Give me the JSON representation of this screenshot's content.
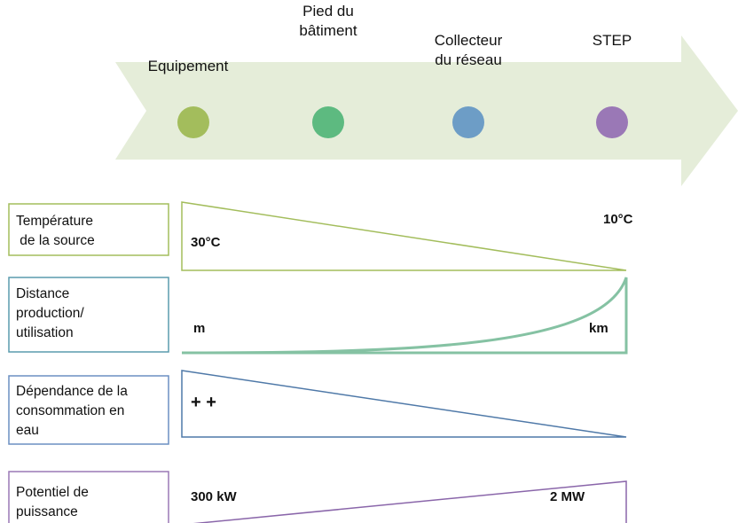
{
  "stages": [
    {
      "lines": [
        "Equipement"
      ]
    },
    {
      "lines": [
        "Pied du",
        "bâtiment"
      ]
    },
    {
      "lines": [
        "Collecteur",
        "du réseau"
      ]
    },
    {
      "lines": [
        "STEP"
      ]
    }
  ],
  "rows": [
    {
      "label": [
        "Température",
        " de la source"
      ],
      "left": "30°C",
      "right": "10°C"
    },
    {
      "label": [
        "Distance",
        "production/",
        "utilisation"
      ],
      "left": "m",
      "right": "km"
    },
    {
      "label": [
        "Dépendance de la",
        "consommation en",
        "eau"
      ],
      "left": "+ +"
    },
    {
      "label": [
        "Potentiel de",
        "puissance"
      ],
      "left": "300 kW",
      "right": "2 MW"
    }
  ]
}
